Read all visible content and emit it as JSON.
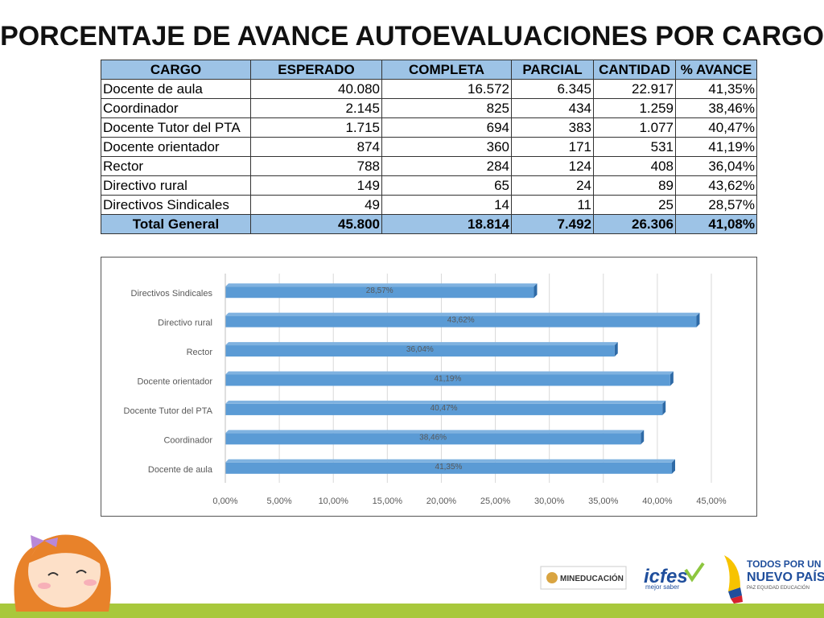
{
  "title": "PORCENTAJE DE AVANCE AUTOEVALUACIONES POR CARGO",
  "table": {
    "header": [
      "CARGO",
      "ESPERADO",
      "COMPLETA",
      "PARCIAL",
      "CANTIDAD",
      "% AVANCE"
    ],
    "rows": [
      [
        "Docente de aula",
        "40.080",
        "16.572",
        "6.345",
        "22.917",
        "41,35%"
      ],
      [
        "Coordinador",
        "2.145",
        "825",
        "434",
        "1.259",
        "38,46%"
      ],
      [
        "Docente Tutor del PTA",
        "1.715",
        "694",
        "383",
        "1.077",
        "40,47%"
      ],
      [
        "Docente orientador",
        "874",
        "360",
        "171",
        "531",
        "41,19%"
      ],
      [
        "Rector",
        "788",
        "284",
        "124",
        "408",
        "36,04%"
      ],
      [
        "Directivo rural",
        "149",
        "65",
        "24",
        "89",
        "43,62%"
      ],
      [
        "Directivos Sindicales",
        "49",
        "14",
        "11",
        "25",
        "28,57%"
      ]
    ],
    "total": [
      "Total General",
      "45.800",
      "18.814",
      "7.492",
      "26.306",
      "41,08%"
    ]
  },
  "chart_data": {
    "type": "barh",
    "categories": [
      "Docente de aula",
      "Coordinador",
      "Docente Tutor del PTA",
      "Docente orientador",
      "Rector",
      "Directivo rural",
      "Directivos Sindicales"
    ],
    "values": [
      41.35,
      38.46,
      40.47,
      41.19,
      36.04,
      43.62,
      28.57
    ],
    "value_labels": [
      "41,35%",
      "38,46%",
      "40,47%",
      "41,19%",
      "36,04%",
      "43,62%",
      "28,57%"
    ],
    "color": "#5b9bd5",
    "xlim": [
      0,
      45
    ],
    "xticks": [
      {
        "value": 0,
        "label": "0,00%"
      },
      {
        "value": 5,
        "label": "5,00%"
      },
      {
        "value": 10,
        "label": "10,00%"
      },
      {
        "value": 15,
        "label": "15,00%"
      },
      {
        "value": 20,
        "label": "20,00%"
      },
      {
        "value": 25,
        "label": "25,00%"
      },
      {
        "value": 30,
        "label": "30,00%"
      },
      {
        "value": 35,
        "label": "35,00%"
      },
      {
        "value": 40,
        "label": "40,00%"
      },
      {
        "value": 45,
        "label": "45,00%"
      }
    ],
    "grid": true
  },
  "logos": {
    "mineducacion": "MINEDUCACIÓN",
    "icfes": "icfes",
    "icfes_tagline": "mejor saber",
    "gov_line1": "TODOS POR UN",
    "gov_line2": "NUEVO PAÍS",
    "gov_line3": "PAZ EQUIDAD EDUCACIÓN"
  }
}
